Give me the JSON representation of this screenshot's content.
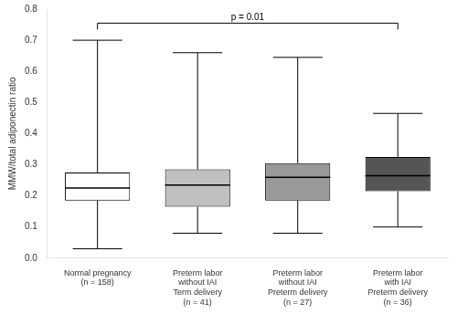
{
  "chart_data": {
    "type": "box",
    "categories": [
      "Normal pregnancy\n(n = 158)",
      "Preterm labor\nwithout IAI\nTerm delivery\n(n = 41)",
      "Preterm labor\nwithout IAI\nPreterm delivery\n(n = 27)",
      "Preterm labor\nwith IAI\nPreterm delivery\n(n = 36)"
    ],
    "whisker_lo": [
      0.03,
      0.08,
      0.08,
      0.1
    ],
    "q1": [
      0.185,
      0.165,
      0.185,
      0.215
    ],
    "median": [
      0.225,
      0.235,
      0.26,
      0.265
    ],
    "q3": [
      0.275,
      0.285,
      0.305,
      0.325
    ],
    "whisker_hi": [
      0.7,
      0.66,
      0.645,
      0.465
    ],
    "colors": [
      "#ffffff",
      "#c0c0c0",
      "#999999",
      "#555555"
    ],
    "ylabel": "MMW/total adiponectin ratio",
    "ylim": [
      0.0,
      0.8
    ],
    "yticks": [
      {
        "value": 0.0,
        "label": "0.0"
      },
      0.1,
      0.2,
      0.3,
      0.4,
      0.5,
      0.6,
      0.7,
      0.8
    ],
    "grid": false,
    "annotations": [
      {
        "text": "p = 0.01",
        "x1": 0,
        "x2": 3,
        "y": 0.755
      }
    ]
  }
}
